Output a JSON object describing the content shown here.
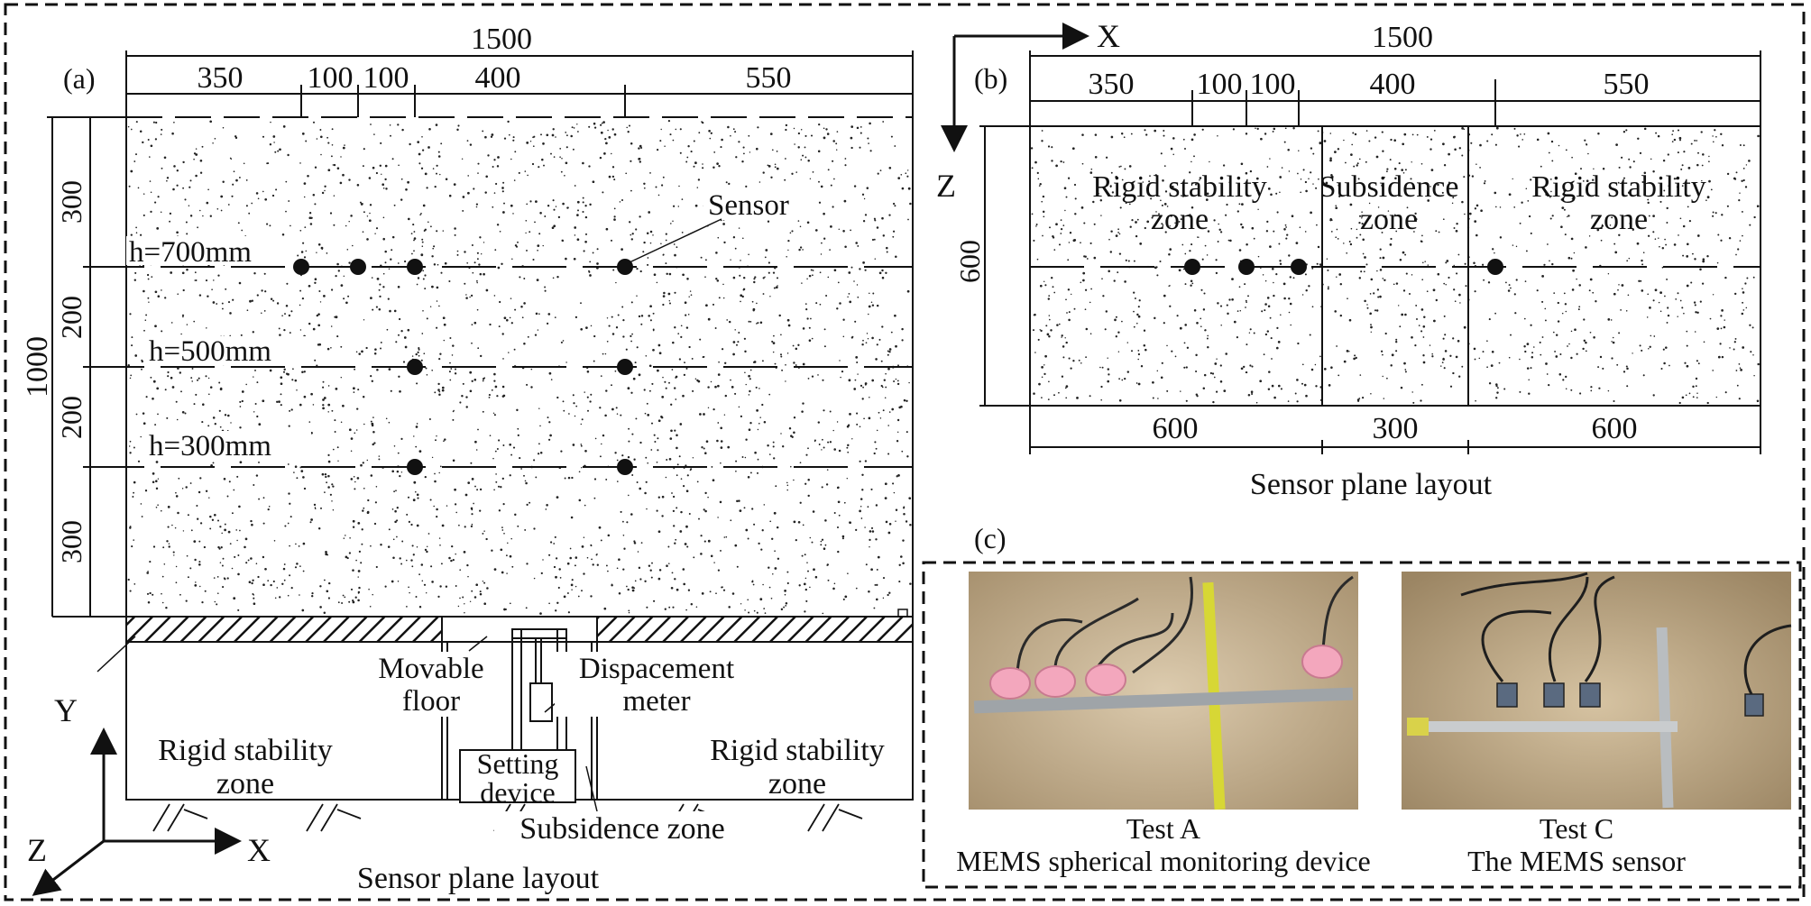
{
  "panel_a": {
    "label": "(a)",
    "total_width": "1500",
    "top_segments": [
      "350",
      "100",
      "100",
      "400",
      "550"
    ],
    "total_height": "1000",
    "left_segments": [
      "300",
      "200",
      "200",
      "300"
    ],
    "depth_labels": [
      "h=700mm",
      "h=500mm",
      "h=300mm"
    ],
    "sensor_callout": "Sensor",
    "movable_floor": [
      "Movable",
      "floor"
    ],
    "displacement_meter": [
      "Dispacement",
      "meter"
    ],
    "setting_device": [
      "Setting",
      "device"
    ],
    "rigid_left": [
      "Rigid stability",
      "zone"
    ],
    "rigid_right": [
      "Rigid stability",
      "zone"
    ],
    "subsidence": "Subsidence zone",
    "axes": {
      "y": "Y",
      "z": "Z",
      "x": "X"
    },
    "caption": "Sensor plane layout"
  },
  "panel_b": {
    "label": "(b)",
    "axes": {
      "x": "X",
      "z": "Z"
    },
    "total_width": "1500",
    "top_segments": [
      "350",
      "100",
      "100",
      "400",
      "550"
    ],
    "height": "600",
    "zones": [
      [
        "Rigid stability",
        "zone"
      ],
      [
        "Subsidence",
        "zone"
      ],
      [
        "Rigid stability",
        "zone"
      ]
    ],
    "bottom_segments": [
      "600",
      "300",
      "600"
    ],
    "caption": "Sensor plane layout"
  },
  "panel_c": {
    "label": "(c)",
    "photos": [
      {
        "title": "Test A",
        "subtitle": "MEMS spherical monitoring device"
      },
      {
        "title": "Test C",
        "subtitle": "The MEMS sensor"
      }
    ]
  }
}
